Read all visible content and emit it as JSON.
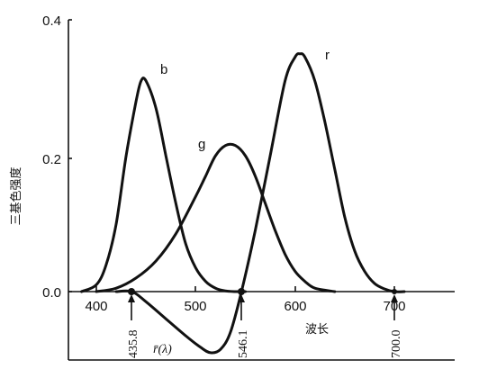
{
  "chart_data": {
    "type": "line",
    "title": "",
    "xlabel": "波长",
    "ylabel": "三基色强度",
    "xlim": [
      365,
      755
    ],
    "ylim": [
      -0.12,
      0.4
    ],
    "x_ticks": [
      400,
      500,
      600,
      700
    ],
    "x_tick_labels": [
      "400",
      "500",
      "600",
      "700"
    ],
    "y_ticks": [
      0.0,
      0.2,
      0.4
    ],
    "y_tick_labels": [
      "0.0",
      "0.2",
      "0.4"
    ],
    "grid": false,
    "series": [
      {
        "name": "b",
        "x": [
          385,
          400,
          410,
          420,
          430,
          440,
          445,
          450,
          460,
          470,
          480,
          490,
          500,
          510,
          520,
          530,
          540,
          550
        ],
        "y": [
          0.0,
          0.01,
          0.04,
          0.1,
          0.2,
          0.28,
          0.31,
          0.31,
          0.27,
          0.2,
          0.13,
          0.07,
          0.035,
          0.015,
          0.005,
          0.001,
          0.0,
          0.0
        ]
      },
      {
        "name": "g",
        "x": [
          400,
          420,
          440,
          460,
          480,
          500,
          510,
          520,
          530,
          540,
          550,
          560,
          570,
          580,
          590,
          600,
          610,
          620,
          640
        ],
        "y": [
          0.0,
          0.005,
          0.02,
          0.045,
          0.085,
          0.14,
          0.17,
          0.2,
          0.215,
          0.215,
          0.2,
          0.17,
          0.13,
          0.09,
          0.055,
          0.03,
          0.015,
          0.005,
          0.0
        ]
      },
      {
        "name": "r",
        "x": [
          420,
          435.8,
          450,
          470,
          490,
          505,
          515,
          525,
          535,
          546.1,
          560,
          575,
          590,
          600,
          605,
          610,
          620,
          630,
          640,
          650,
          660,
          670,
          680,
          690,
          700,
          710
        ],
        "y": [
          0.0,
          0.0,
          -0.015,
          -0.04,
          -0.065,
          -0.082,
          -0.09,
          -0.085,
          -0.06,
          0.0,
          0.09,
          0.2,
          0.31,
          0.345,
          0.35,
          0.345,
          0.31,
          0.25,
          0.18,
          0.11,
          0.06,
          0.03,
          0.012,
          0.004,
          0.0,
          0.0
        ]
      }
    ],
    "annotations": [
      {
        "text": "435.8",
        "x": 435.8
      },
      {
        "text": "546.1",
        "x": 546.1
      },
      {
        "text": "700.0",
        "x": 700.0
      }
    ],
    "curve_label": "r̄(λ)"
  }
}
